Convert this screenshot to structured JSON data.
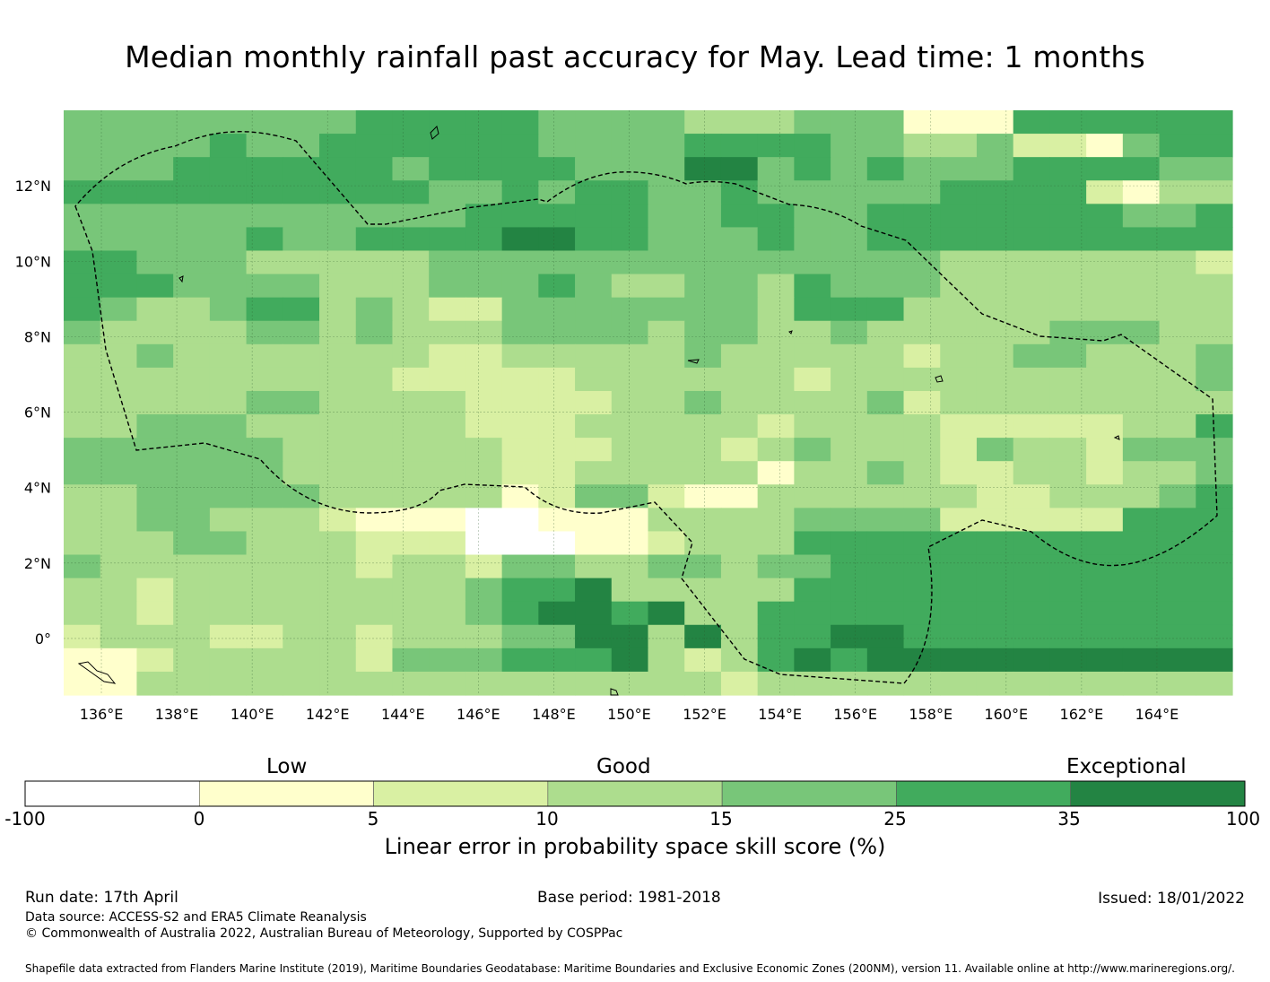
{
  "title": "Median monthly rainfall past accuracy for May. Lead time: 1 months",
  "map": {
    "lon_range": [
      135,
      166
    ],
    "lat_range": [
      -1.5,
      14
    ],
    "x_ticks": [
      "136°E",
      "138°E",
      "140°E",
      "142°E",
      "144°E",
      "146°E",
      "148°E",
      "150°E",
      "152°E",
      "154°E",
      "156°E",
      "158°E",
      "160°E",
      "162°E",
      "164°E"
    ],
    "y_ticks": [
      "12°N",
      "10°N",
      "8°N",
      "6°N",
      "4°N",
      "2°N",
      "0°"
    ],
    "grid_cell_deg": 0.833,
    "class_colors": [
      "#ffffff",
      "#ffffcc",
      "#d9f0a3",
      "#addd8e",
      "#78c679",
      "#41ab5d",
      "#238443"
    ],
    "eez_boundary": "dashed",
    "skill_grid": [
      "44444444555554444333444111555555",
      "44445445555554444555544334221455",
      "44455555545555444664545444555544",
      "55555555554454554454444455552133",
      "44444444444555554455445555555445",
      "44444544555566554445445555555555",
      "55444333334444444444444433333332",
      "55544443334445433443544433333333",
      "54334553432244444443555333333333",
      "43333443433344443443343333344433",
      "33433333332233333433333233443334",
      "33333333322222333333233333333334",
      "33333443333222233433334233333333",
      "33444333333222333332333322222335",
      "44444433333322233323433324332444",
      "44444433333322333331334322332334",
      "33444443333312442113333332233345",
      "33443332111001113333444422222555",
      "33344333222000112333555555555555",
      "43333333233244334434455555555555",
      "33233333333455633333555555555555",
      "33233333333456656335555555555555",
      "23332233233344663635566555555555",
      "11233333244455563235656666666666",
      "11333333333333333323333333333333"
    ]
  },
  "colorbar": {
    "categories": [
      "Low",
      "Good",
      "Exceptional"
    ],
    "ticks": [
      "-100",
      "0",
      "5",
      "10",
      "15",
      "25",
      "35",
      "100"
    ],
    "colors": [
      "#ffffff",
      "#ffffcc",
      "#d9f0a3",
      "#addd8e",
      "#78c679",
      "#41ab5d",
      "#238443"
    ],
    "label": "Linear error in probability space skill score (%)"
  },
  "footer": {
    "run_date": "Run date: 17th April",
    "base_period": "Base period: 1981-2018",
    "issued": "Issued: 18/01/2022",
    "data_source": "Data source: ACCESS-S2 and ERA5 Climate Reanalysis",
    "copyright": "© Commonwealth of Australia 2022, Australian Bureau of Meteorology, Supported by COSPPac",
    "shapefile": "Shapefile data extracted from Flanders Marine Institute (2019), Maritime Boundaries Geodatabase: Maritime Boundaries and Exclusive Economic Zones (200NM), version 11. Available online at http://www.marineregions.org/."
  }
}
